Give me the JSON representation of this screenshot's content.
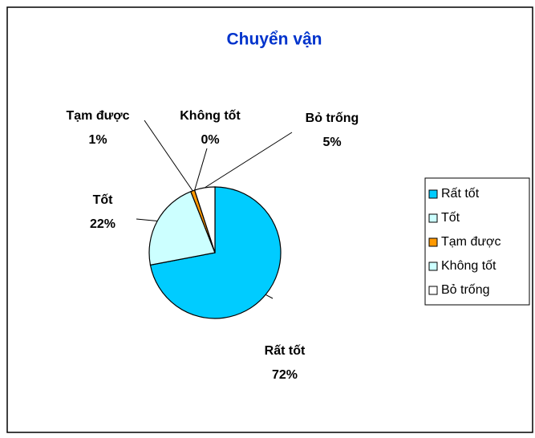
{
  "chart_data": {
    "type": "pie",
    "title": "Chuyển vận",
    "categories": [
      "Rất tốt",
      "Tốt",
      "Tạm được",
      "Không tốt",
      "Bỏ trống"
    ],
    "values": [
      72,
      22,
      1,
      0,
      5
    ],
    "value_labels": [
      "72%",
      "22%",
      "1%",
      "0%",
      "5%"
    ],
    "colors": [
      "#00ccff",
      "#ccffff",
      "#ff9900",
      "#ccffff",
      "#ffffff"
    ],
    "legend": "right"
  }
}
